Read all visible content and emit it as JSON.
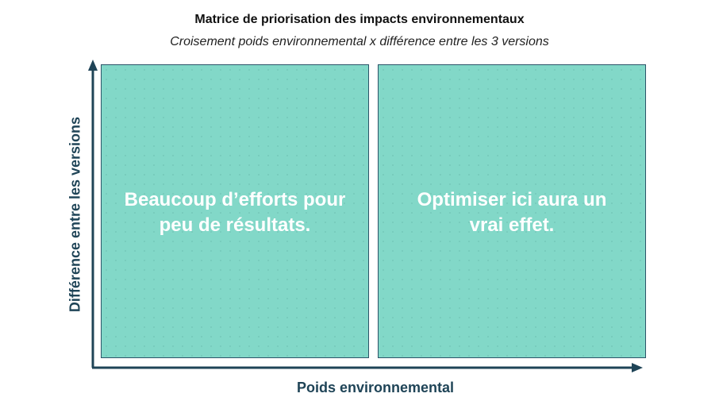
{
  "title": "Matrice de priorisation des impacts environnementaux",
  "subtitle": "Croisement poids environnemental x différence entre les 3 versions",
  "quadrants": [
    {
      "line1": "Beaucoup d’efforts pour",
      "line2": "peu de résultats."
    },
    {
      "line1": "Optimiser ici aura un",
      "line2": "vrai effet."
    }
  ],
  "axes": {
    "x_label": "Poids environnemental",
    "y_label": "Différence entre les versions"
  },
  "colors": {
    "quadrant_fill": "#82d8c8",
    "axis": "#1f4457"
  }
}
